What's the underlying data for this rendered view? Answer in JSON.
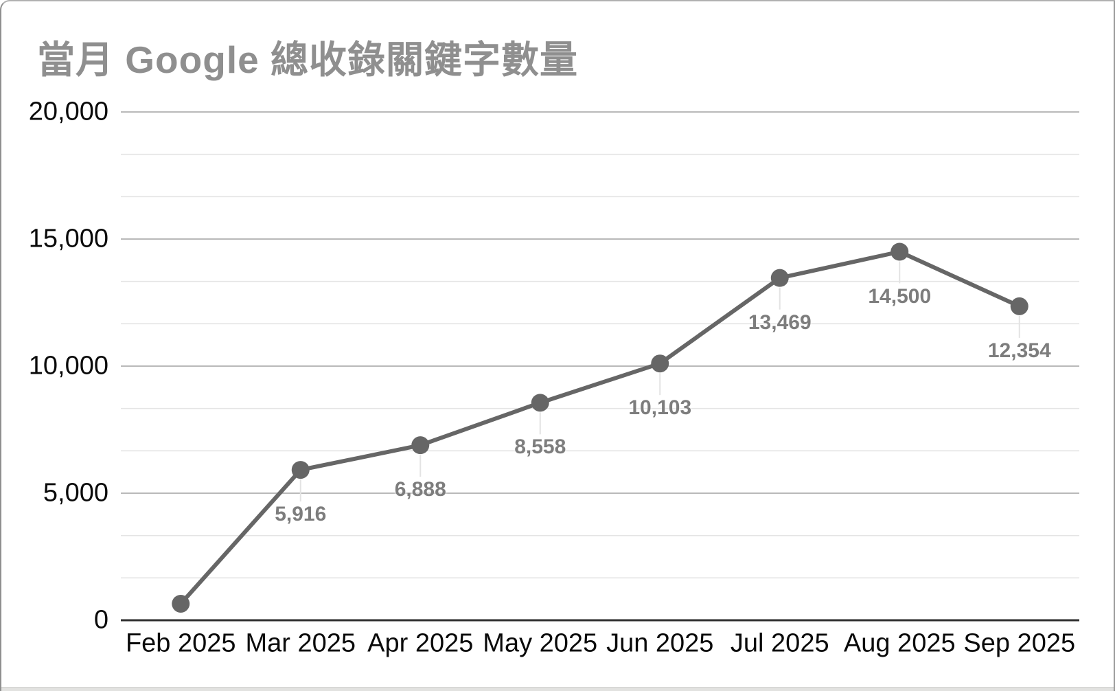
{
  "page": {
    "background": "#ffffff",
    "frame_border_color": "#8f8f8f",
    "bottom_strip_color": "#e2e2e0"
  },
  "chart_data": {
    "type": "line",
    "title": "當月 Google 總收錄關鍵字數量",
    "categories": [
      "Feb 2025",
      "Mar 2025",
      "Apr 2025",
      "May 2025",
      "Jun 2025",
      "Jul 2025",
      "Aug 2025",
      "Sep 2025"
    ],
    "series": [
      {
        "name": "當月 Google 總收錄關鍵字數量",
        "values": [
          650,
          5916,
          6888,
          8558,
          10103,
          13469,
          14500,
          12354
        ],
        "point_labels": [
          "",
          "5,916",
          "6,888",
          "8,558",
          "10,103",
          "13,469",
          "14,500",
          "12,354"
        ],
        "color": "#666666"
      }
    ],
    "xlabel": "",
    "ylabel": "",
    "ylim": [
      0,
      20000
    ],
    "y_ticks": [
      {
        "value": 0,
        "label": "0"
      },
      {
        "value": 5000,
        "label": "5,000"
      },
      {
        "value": 10000,
        "label": "10,000"
      },
      {
        "value": 15000,
        "label": "15,000"
      },
      {
        "value": 20000,
        "label": "20,000"
      }
    ],
    "y_minor_divisions": 3,
    "grid": true,
    "legend": "none",
    "colors": {
      "title": "#8f8f8f",
      "axis_labels": "#0a0a0a",
      "data_labels": "#7d7d7d",
      "series_line": "#666666",
      "gridline_major": "#b9b9b9",
      "gridline_minor": "#e4e4e4",
      "axis_line": "#2f2f2f",
      "leader_line": "#e3e3e3"
    }
  }
}
